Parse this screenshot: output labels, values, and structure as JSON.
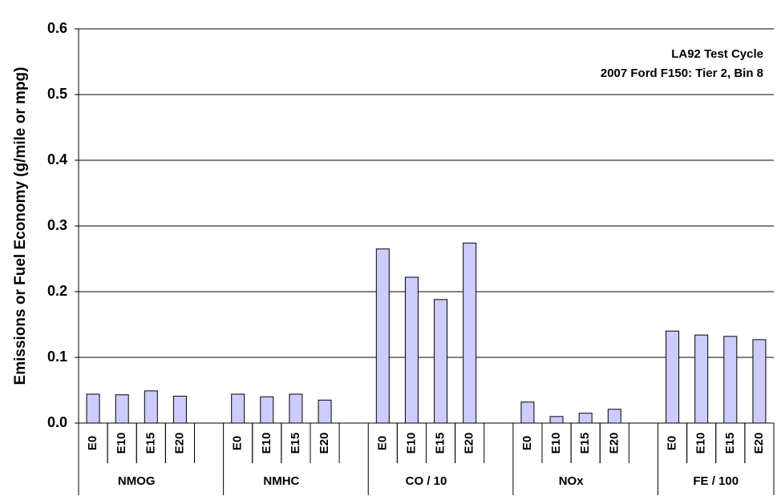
{
  "chart_data": {
    "type": "bar",
    "y_label": "Emissions or Fuel Economy (g/mile or mpg)",
    "annotations": [
      "LA92 Test Cycle",
      "2007 Ford F150:  Tier 2, Bin 8"
    ],
    "categories": [
      "E0",
      "E10",
      "E15",
      "E20"
    ],
    "groups": [
      {
        "name": "NMOG",
        "values": [
          0.044,
          0.043,
          0.049,
          0.041
        ]
      },
      {
        "name": "NMHC",
        "values": [
          0.044,
          0.04,
          0.044,
          0.035
        ]
      },
      {
        "name": "CO / 10",
        "values": [
          0.265,
          0.222,
          0.188,
          0.274
        ]
      },
      {
        "name": "NOx",
        "values": [
          0.032,
          0.01,
          0.015,
          0.021
        ]
      },
      {
        "name": "FE / 100",
        "values": [
          0.14,
          0.134,
          0.132,
          0.127
        ]
      }
    ],
    "color": "#ccccff",
    "ylim": [
      0,
      0.6
    ],
    "yticks": [
      {
        "value": 0,
        "label": "0.0"
      },
      0.1,
      0.2,
      0.3,
      0.4,
      0.5,
      0.6
    ],
    "grid": true
  }
}
